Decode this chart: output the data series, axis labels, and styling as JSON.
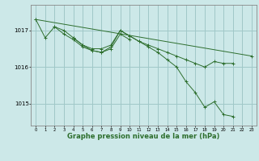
{
  "background_color": "#cce8e8",
  "grid_color": "#a0c8c8",
  "line_color": "#2d6e2d",
  "marker_color": "#2d6e2d",
  "xlabel": "Graphe pression niveau de la mer (hPa)",
  "xlabel_fontsize": 6.0,
  "yticks": [
    1015,
    1016,
    1017
  ],
  "ylim": [
    1014.4,
    1017.7
  ],
  "xlim": [
    -0.5,
    23.5
  ],
  "xticks": [
    0,
    1,
    2,
    3,
    4,
    5,
    6,
    7,
    8,
    9,
    10,
    11,
    12,
    13,
    14,
    15,
    16,
    17,
    18,
    19,
    20,
    21,
    22,
    23
  ],
  "series": [
    [
      1017.3,
      1016.8,
      1017.1,
      1017.0,
      1016.8,
      1016.6,
      1016.5,
      1016.5,
      1016.6,
      1017.0,
      1016.85,
      1016.7,
      1016.6,
      1016.5,
      1016.4,
      1016.3,
      1016.2,
      1016.1,
      1016.0,
      1016.15,
      1016.1,
      1016.1,
      null,
      null
    ],
    [
      1017.3,
      null,
      null,
      null,
      null,
      null,
      null,
      null,
      null,
      null,
      null,
      null,
      null,
      null,
      null,
      null,
      null,
      null,
      null,
      null,
      null,
      null,
      null,
      1016.3
    ],
    [
      null,
      null,
      1017.1,
      1016.9,
      1016.75,
      1016.55,
      1016.45,
      1016.4,
      1016.5,
      1016.9,
      1016.75,
      null,
      null,
      null,
      null,
      null,
      null,
      null,
      null,
      null,
      null,
      null,
      null,
      null
    ],
    [
      null,
      null,
      null,
      null,
      1016.8,
      1016.6,
      1016.45,
      1016.4,
      1016.55,
      1017.0,
      1016.85,
      1016.7,
      1016.55,
      1016.4,
      1016.2,
      1016.0,
      1015.6,
      1015.3,
      1014.9,
      1015.05,
      1014.7,
      1014.65,
      null,
      null
    ]
  ]
}
